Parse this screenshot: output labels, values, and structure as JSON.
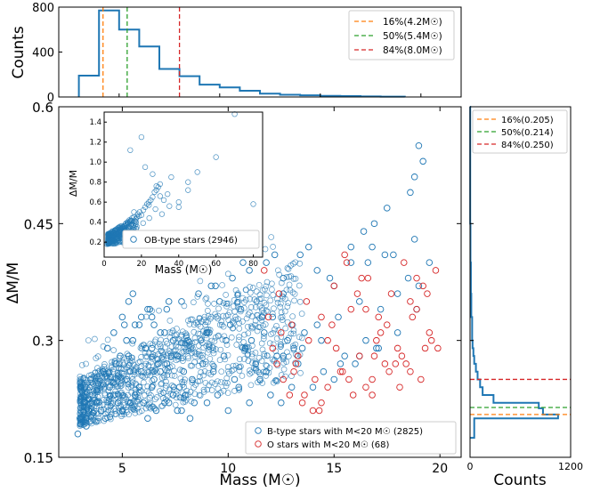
{
  "chart_data": [
    {
      "panel": "top-histogram",
      "type": "histogram",
      "xlabel": "",
      "ylabel": "Counts",
      "xlim": [
        2,
        22
      ],
      "ylim": [
        0,
        800
      ],
      "yticks": [
        "0",
        "400",
        "800"
      ],
      "bin_edges": [
        3.0,
        4.0,
        5.0,
        6.0,
        7.0,
        8.0,
        9.0,
        10.0,
        11.0,
        12.0,
        13.0,
        14.0,
        15.0,
        16.0,
        17.0,
        18.0,
        19.2
      ],
      "counts": [
        190,
        770,
        600,
        450,
        250,
        185,
        110,
        85,
        55,
        30,
        20,
        15,
        10,
        8,
        5,
        3
      ],
      "color": "#1f77b4",
      "lines": [
        {
          "label": "16%(4.2M☉)",
          "x": 4.2,
          "color": "#ff7f0e"
        },
        {
          "label": "50%(5.4M☉)",
          "x": 5.4,
          "color": "#2ca02c"
        },
        {
          "label": "84%(8.0M☉)",
          "x": 8.0,
          "color": "#d62728"
        }
      ],
      "legend": "top-right"
    },
    {
      "panel": "main-scatter",
      "type": "scatter",
      "xlabel": "Mass (M☉)",
      "ylabel": "ΔM/M",
      "xlim": [
        2,
        21
      ],
      "ylim": [
        0.15,
        0.6
      ],
      "xticks": [
        "5",
        "10",
        "15",
        "20"
      ],
      "yticks": [
        "0.15",
        "0.3",
        "0.45",
        "0.6"
      ],
      "legend": "bottom-right",
      "series": [
        {
          "name": "B-type stars with M<20 M☉ (2825)",
          "color": "#1f77b4",
          "x": [
            3.0,
            3.4,
            3.8,
            4.2,
            4.6,
            5.0,
            5.4,
            5.8,
            6.2,
            6.6,
            7.0,
            7.4,
            7.8,
            8.2,
            3.2,
            3.6,
            4.0,
            4.4,
            4.8,
            5.2,
            5.6,
            6.0,
            6.4,
            6.8,
            7.2,
            7.6,
            8.0,
            8.4,
            3.5,
            4.1,
            4.7,
            5.3,
            5.9,
            6.5,
            7.1,
            7.7,
            8.3,
            4.3,
            4.9,
            5.5,
            6.1,
            6.7,
            7.3,
            7.9,
            4.6,
            5.2,
            5.8,
            6.4,
            7.0,
            7.6,
            5.0,
            5.6,
            6.2,
            6.8,
            7.4,
            5.3,
            5.9,
            6.5,
            7.1,
            3.3,
            2.9,
            9.0,
            9.5,
            10.0,
            10.5,
            11.0,
            11.5,
            12.0,
            12.5,
            13.0,
            8.8,
            9.3,
            9.8,
            10.3,
            10.8,
            11.3,
            11.8,
            12.3,
            12.8,
            13.3,
            9.1,
            10.1,
            11.1,
            12.1,
            13.1,
            9.6,
            10.6,
            11.6,
            12.6,
            13.6,
            14.0,
            14.5,
            15.0,
            15.5,
            16.0,
            16.5,
            17.0,
            14.2,
            15.2,
            16.2,
            17.2,
            18.0,
            18.5,
            19.0,
            19.5,
            14.8,
            15.8,
            16.8,
            17.8,
            18.8,
            8.6,
            9.4,
            10.2,
            11.0,
            11.8,
            12.6,
            13.4,
            14.2,
            15.0,
            15.8,
            16.6,
            17.4,
            5.5,
            6.3,
            7.2,
            8.1,
            9.0,
            9.9,
            10.8,
            11.7,
            12.6,
            13.5,
            14.4,
            15.3,
            16.2,
            17.1,
            18.0,
            18.9,
            19.0,
            19.2,
            18.6,
            18.8,
            17.5,
            16.9,
            16.4,
            13.8,
            12.2,
            10.7,
            9.2,
            7.8,
            6.4,
            5.1
          ],
          "y": [
            0.2,
            0.21,
            0.22,
            0.2,
            0.23,
            0.21,
            0.22,
            0.24,
            0.2,
            0.21,
            0.22,
            0.23,
            0.21,
            0.2,
            0.22,
            0.23,
            0.21,
            0.24,
            0.22,
            0.25,
            0.23,
            0.22,
            0.24,
            0.26,
            0.22,
            0.21,
            0.23,
            0.22,
            0.25,
            0.26,
            0.27,
            0.28,
            0.26,
            0.25,
            0.27,
            0.24,
            0.25,
            0.29,
            0.28,
            0.3,
            0.29,
            0.27,
            0.28,
            0.26,
            0.31,
            0.3,
            0.32,
            0.29,
            0.31,
            0.28,
            0.33,
            0.32,
            0.34,
            0.31,
            0.3,
            0.35,
            0.33,
            0.32,
            0.34,
            0.19,
            0.18,
            0.22,
            0.23,
            0.21,
            0.24,
            0.22,
            0.25,
            0.23,
            0.22,
            0.24,
            0.27,
            0.26,
            0.28,
            0.25,
            0.29,
            0.27,
            0.26,
            0.28,
            0.3,
            0.27,
            0.31,
            0.32,
            0.3,
            0.33,
            0.29,
            0.35,
            0.34,
            0.33,
            0.36,
            0.31,
            0.24,
            0.26,
            0.25,
            0.28,
            0.27,
            0.3,
            0.29,
            0.32,
            0.33,
            0.35,
            0.34,
            0.36,
            0.38,
            0.37,
            0.4,
            0.38,
            0.4,
            0.42,
            0.41,
            0.43,
            0.36,
            0.37,
            0.38,
            0.39,
            0.4,
            0.38,
            0.41,
            0.39,
            0.37,
            0.42,
            0.4,
            0.41,
            0.36,
            0.34,
            0.35,
            0.3,
            0.31,
            0.3,
            0.29,
            0.31,
            0.28,
            0.29,
            0.3,
            0.27,
            0.28,
            0.29,
            0.31,
            0.34,
            0.55,
            0.53,
            0.49,
            0.51,
            0.47,
            0.45,
            0.44,
            0.42,
            0.41,
            0.4,
            0.37,
            0.35,
            0.33,
            0.32
          ]
        },
        {
          "name": "O stars with M<20 M☉ (68)",
          "color": "#d62728",
          "x": [
            11.7,
            12.1,
            12.5,
            12.9,
            13.2,
            13.5,
            13.8,
            14.1,
            14.4,
            14.7,
            15.0,
            15.3,
            15.6,
            15.9,
            16.2,
            16.5,
            16.8,
            17.1,
            17.4,
            17.7,
            18.0,
            18.3,
            18.6,
            18.9,
            19.2,
            19.5,
            19.8,
            12.3,
            13.0,
            13.7,
            14.4,
            15.1,
            15.8,
            16.5,
            17.2,
            17.9,
            18.6,
            19.3,
            11.9,
            12.6,
            13.3,
            14.0,
            14.7,
            15.4,
            16.1,
            16.8,
            17.5,
            18.2,
            18.9,
            19.6,
            13.6,
            14.9,
            16.3,
            17.6,
            18.7,
            19.4,
            15.5,
            16.9,
            18.1,
            19.9,
            14.3,
            13.1,
            12.4,
            15.7,
            17.0,
            18.4,
            19.1,
            16.6
          ],
          "y": [
            0.39,
            0.29,
            0.31,
            0.23,
            0.27,
            0.22,
            0.3,
            0.25,
            0.33,
            0.24,
            0.37,
            0.26,
            0.4,
            0.23,
            0.28,
            0.34,
            0.25,
            0.33,
            0.27,
            0.36,
            0.29,
            0.4,
            0.26,
            0.38,
            0.37,
            0.31,
            0.39,
            0.27,
            0.32,
            0.35,
            0.22,
            0.29,
            0.34,
            0.24,
            0.31,
            0.27,
            0.35,
            0.29,
            0.33,
            0.25,
            0.28,
            0.21,
            0.3,
            0.26,
            0.36,
            0.23,
            0.32,
            0.28,
            0.34,
            0.3,
            0.23,
            0.32,
            0.38,
            0.26,
            0.33,
            0.36,
            0.41,
            0.28,
            0.24,
            0.29,
            0.21,
            0.26,
            0.36,
            0.25,
            0.3,
            0.27,
            0.25,
            0.38
          ]
        }
      ],
      "inset": {
        "xlabel": "Mass (M☉)",
        "ylabel": "ΔM/M",
        "xlim": [
          0,
          85
        ],
        "ylim": [
          0.05,
          1.5
        ],
        "xticks": [
          "0",
          "20",
          "40",
          "60",
          "80"
        ],
        "yticks": [
          "0.2",
          "0.4",
          "0.6",
          "0.8",
          "1.0",
          "1.2",
          "1.4"
        ],
        "legend_label": "OB-type stars (2946)",
        "color": "#1f77b4",
        "x": [
          1.5,
          2.0,
          2.5,
          3.0,
          3.5,
          4.0,
          4.5,
          5.0,
          5.5,
          6.0,
          6.5,
          7.0,
          7.5,
          8.0,
          8.5,
          9.0,
          9.5,
          10.0,
          10.5,
          11.0,
          11.5,
          12.0,
          12.5,
          13.0,
          13.5,
          14.0,
          15.0,
          16.0,
          17.0,
          18.0,
          19.0,
          20.0,
          21.0,
          22.0,
          23.0,
          24.0,
          25.0,
          26.0,
          27.0,
          28.0,
          29.0,
          30.0,
          32.0,
          34.0,
          36.0,
          40.0,
          45.0,
          50.0,
          2.2,
          3.3,
          4.4,
          5.5,
          6.6,
          7.7,
          8.8,
          9.9,
          11.0,
          12.1,
          13.2,
          14.3,
          16.5,
          18.7,
          20.9,
          24.2,
          27.5,
          31.0,
          35.0,
          40.0,
          45.0,
          60.0,
          70.0,
          80.0,
          14.0,
          20.0,
          22.0,
          26.0,
          28.0,
          30.0,
          16.0,
          24.0
        ],
        "y": [
          0.18,
          0.2,
          0.22,
          0.21,
          0.24,
          0.22,
          0.26,
          0.25,
          0.27,
          0.26,
          0.29,
          0.28,
          0.3,
          0.32,
          0.31,
          0.33,
          0.34,
          0.35,
          0.36,
          0.34,
          0.38,
          0.37,
          0.4,
          0.39,
          0.42,
          0.41,
          0.44,
          0.45,
          0.43,
          0.48,
          0.5,
          0.47,
          0.52,
          0.55,
          0.58,
          0.6,
          0.62,
          0.65,
          0.7,
          0.72,
          0.75,
          0.78,
          0.62,
          0.68,
          0.85,
          0.55,
          0.72,
          0.9,
          0.23,
          0.25,
          0.28,
          0.3,
          0.33,
          0.29,
          0.27,
          0.31,
          0.36,
          0.33,
          0.35,
          0.38,
          0.41,
          0.46,
          0.39,
          0.44,
          0.53,
          0.48,
          0.56,
          0.6,
          0.8,
          1.05,
          1.48,
          0.58,
          1.12,
          1.25,
          0.95,
          0.88,
          0.76,
          0.66,
          0.5,
          0.57
        ]
      }
    },
    {
      "panel": "right-histogram",
      "type": "histogram",
      "orientation": "horizontal",
      "xlabel": "Counts",
      "ylabel": "",
      "xlim": [
        0,
        1200
      ],
      "ylim": [
        0.15,
        0.6
      ],
      "xticks": [
        "0",
        "1200"
      ],
      "bin_edges": [
        0.175,
        0.2,
        0.205,
        0.213,
        0.22,
        0.23,
        0.24,
        0.25,
        0.26,
        0.27,
        0.28,
        0.29,
        0.3,
        0.33,
        0.36,
        0.4,
        0.45,
        0.6
      ],
      "counts": [
        50,
        1050,
        870,
        820,
        280,
        150,
        120,
        90,
        70,
        50,
        40,
        30,
        25,
        15,
        10,
        5,
        2
      ],
      "color": "#1f77b4",
      "lines": [
        {
          "label": "16%(0.205)",
          "y": 0.205,
          "color": "#ff7f0e"
        },
        {
          "label": "50%(0.214)",
          "y": 0.214,
          "color": "#2ca02c"
        },
        {
          "label": "84%(0.250)",
          "y": 0.25,
          "color": "#d62728"
        }
      ],
      "legend": "top"
    }
  ]
}
